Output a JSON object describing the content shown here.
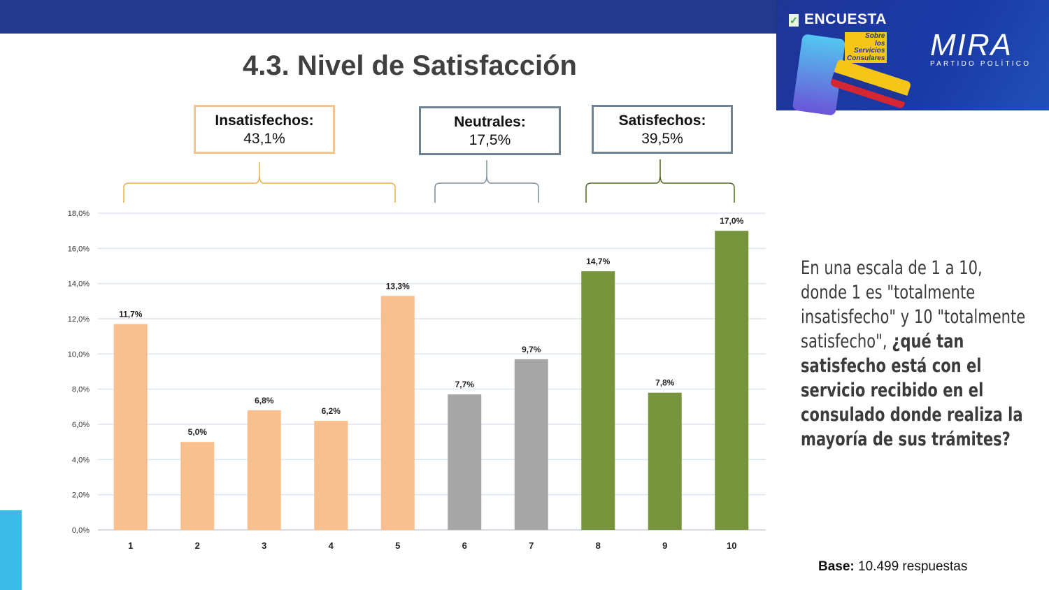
{
  "header": {
    "survey_label": "ENCUESTA",
    "survey_sub": [
      "Sobre",
      "los",
      "Servicios",
      "Consulares"
    ],
    "brand": "MIRA",
    "brand_sub": "PARTIDO POLÍTICO"
  },
  "title": "4.3. Nivel de Satisfacción",
  "groups": [
    {
      "label": "Insatisfechos:",
      "value": "43,1%",
      "color": "#f6c48a"
    },
    {
      "label": "Neutrales:",
      "value": "17,5%",
      "color": "#6e8291"
    },
    {
      "label": "Satisfechos:",
      "value": "39,5%",
      "color": "#6e8291"
    }
  ],
  "bracket_colors": [
    "#e8b04a",
    "#7f909c",
    "#4e6b1c"
  ],
  "question": {
    "intro": "En una escala de 1 a 10, donde 1 es \"totalmente insatisfecho\" y 10 \"totalmente satisfecho\",",
    "bold": "¿qué tan satisfecho está con el servicio recibido en el consulado donde realiza la mayoría de sus trámites?"
  },
  "base": {
    "label": "Base:",
    "value": "10.499 respuestas"
  },
  "chart_data": {
    "type": "bar",
    "categories": [
      "1",
      "2",
      "3",
      "4",
      "5",
      "6",
      "7",
      "8",
      "9",
      "10"
    ],
    "values": [
      11.7,
      5.0,
      6.8,
      6.2,
      13.3,
      7.7,
      9.7,
      14.7,
      7.8,
      17.0
    ],
    "data_labels": [
      "11,7%",
      "5,0%",
      "6,8%",
      "6,2%",
      "13,3%",
      "7,7%",
      "9,7%",
      "14,7%",
      "7,8%",
      "17,0%"
    ],
    "colors": [
      "#f8bf8f",
      "#f8bf8f",
      "#f8bf8f",
      "#f8bf8f",
      "#f8bf8f",
      "#a6a6a6",
      "#a6a6a6",
      "#77933c",
      "#77933c",
      "#77933c"
    ],
    "yticks": [
      "0,0%",
      "2,0%",
      "4,0%",
      "6,0%",
      "8,0%",
      "10,0%",
      "12,0%",
      "14,0%",
      "16,0%",
      "18,0%"
    ],
    "ylim": [
      0,
      18
    ],
    "grid": true,
    "title": "",
    "xlabel": "",
    "ylabel": ""
  }
}
